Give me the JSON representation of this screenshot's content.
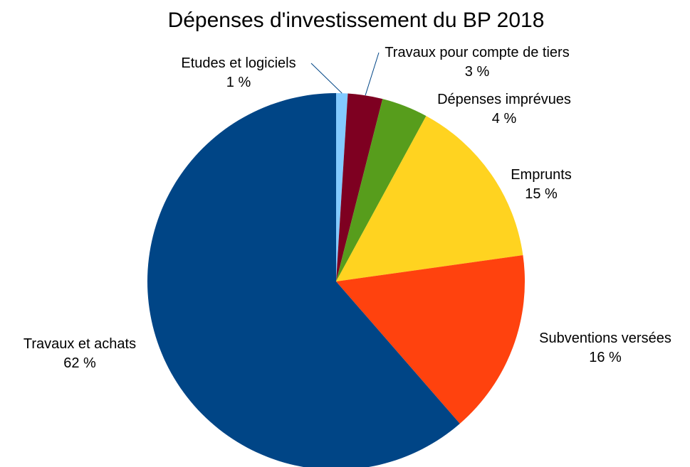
{
  "chart_data": {
    "type": "pie",
    "title": "Dépenses d'investissement du BP 2018",
    "slices": [
      {
        "label": "Etudes et logiciels",
        "value": 1,
        "value_label": "1 %",
        "color": "#83caff"
      },
      {
        "label": "Travaux pour compte de tiers",
        "value": 3,
        "value_label": "3 %",
        "color": "#7e0021"
      },
      {
        "label": "Dépenses imprévues",
        "value": 4,
        "value_label": "4 %",
        "color": "#579d1c"
      },
      {
        "label": "Emprunts",
        "value": 15,
        "value_label": "15 %",
        "color": "#ffd320"
      },
      {
        "label": "Subventions versées",
        "value": 16,
        "value_label": "16 %",
        "color": "#ff420e"
      },
      {
        "label": "Travaux et achats",
        "value": 62,
        "value_label": "62 %",
        "color": "#004586"
      }
    ],
    "start_angle": "top",
    "direction": "clockwise",
    "legend": "none"
  }
}
